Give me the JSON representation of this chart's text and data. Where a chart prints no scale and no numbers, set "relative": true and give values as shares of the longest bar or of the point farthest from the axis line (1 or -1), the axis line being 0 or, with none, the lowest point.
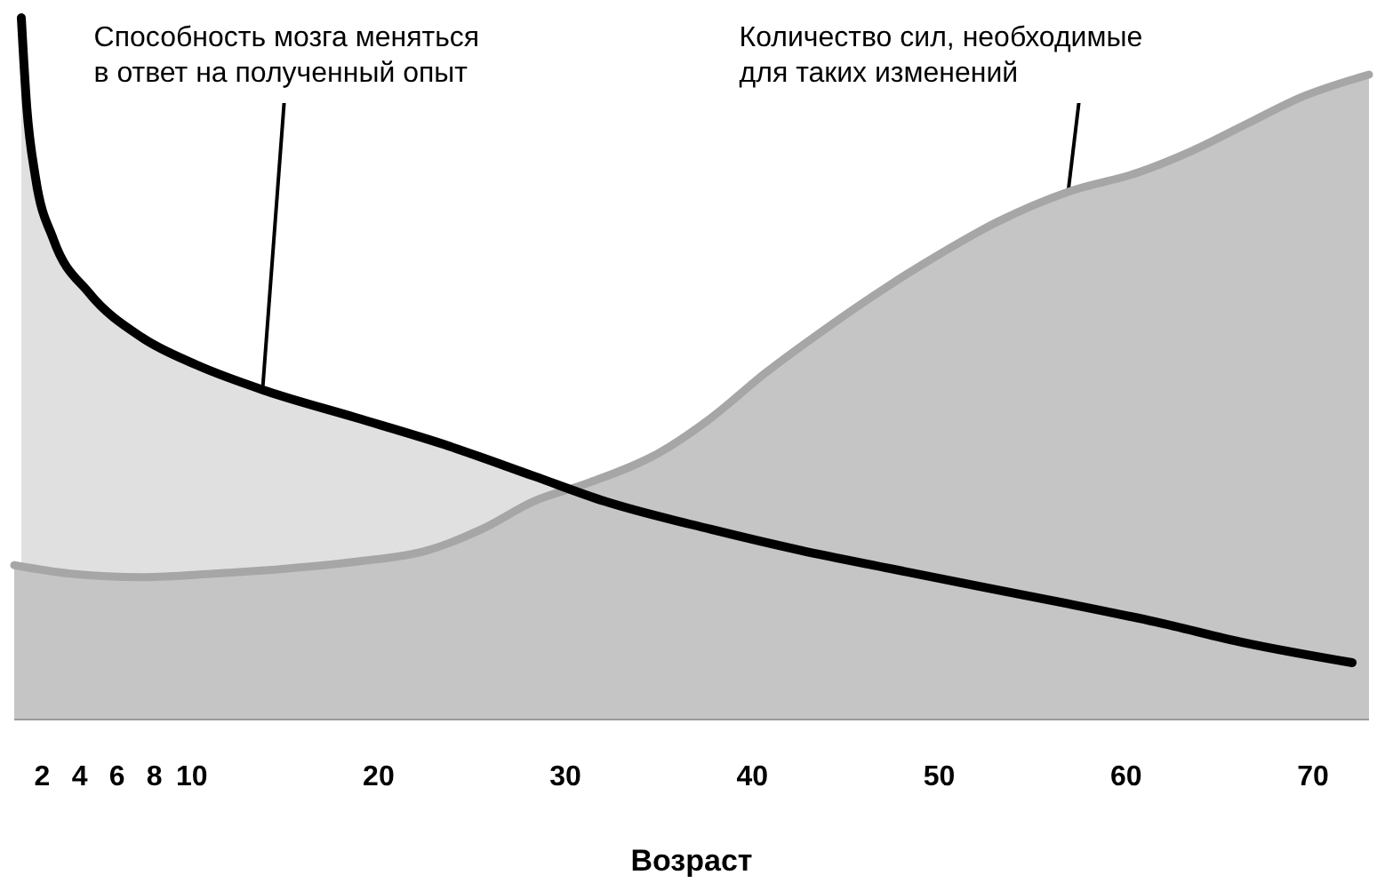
{
  "chart_data": {
    "type": "area",
    "relative": true,
    "xlabel": "Возраст",
    "xlim": [
      0.5,
      73
    ],
    "xticks": [
      2,
      4,
      6,
      8,
      10,
      20,
      30,
      40,
      50,
      60,
      70
    ],
    "series": [
      {
        "color": "#000000",
        "x": [
          0.88,
          1.17,
          1.64,
          2.6,
          4.5,
          7.36,
          10.2,
          14.0,
          18.8,
          23.5,
          28.3,
          32.1,
          37.8,
          42.6,
          47.4,
          52.1,
          56.9,
          61.6,
          66.4,
          72.1
        ],
        "values": [
          1.0,
          0.873,
          0.772,
          0.684,
          0.608,
          0.544,
          0.506,
          0.468,
          0.43,
          0.392,
          0.347,
          0.311,
          0.271,
          0.241,
          0.215,
          0.19,
          0.165,
          0.139,
          0.109,
          0.081
        ]
      },
      {
        "color": "#a6a6a6",
        "x": [
          0.5,
          3.5,
          7.4,
          11.2,
          15.0,
          18.8,
          22.6,
          25.5,
          28.3,
          31.2,
          35.0,
          37.8,
          40.7,
          43.5,
          47.4,
          50.2,
          53.1,
          56.9,
          60.7,
          63.5,
          66.4,
          69.3,
          73.0
        ],
        "values": [
          0.22,
          0.208,
          0.203,
          0.208,
          0.215,
          0.225,
          0.241,
          0.271,
          0.311,
          0.337,
          0.38,
          0.43,
          0.494,
          0.549,
          0.62,
          0.666,
          0.709,
          0.752,
          0.78,
          0.81,
          0.848,
          0.886,
          0.919
        ]
      }
    ],
    "annotations": [
      {
        "text": "Способность мозга меняться\nв ответ на полученный опыт",
        "x": 13.8,
        "y": 0.473
      },
      {
        "text": "Количество сил, необходимые\nдля таких изменений",
        "x": 56.9,
        "y": 0.752
      }
    ]
  }
}
